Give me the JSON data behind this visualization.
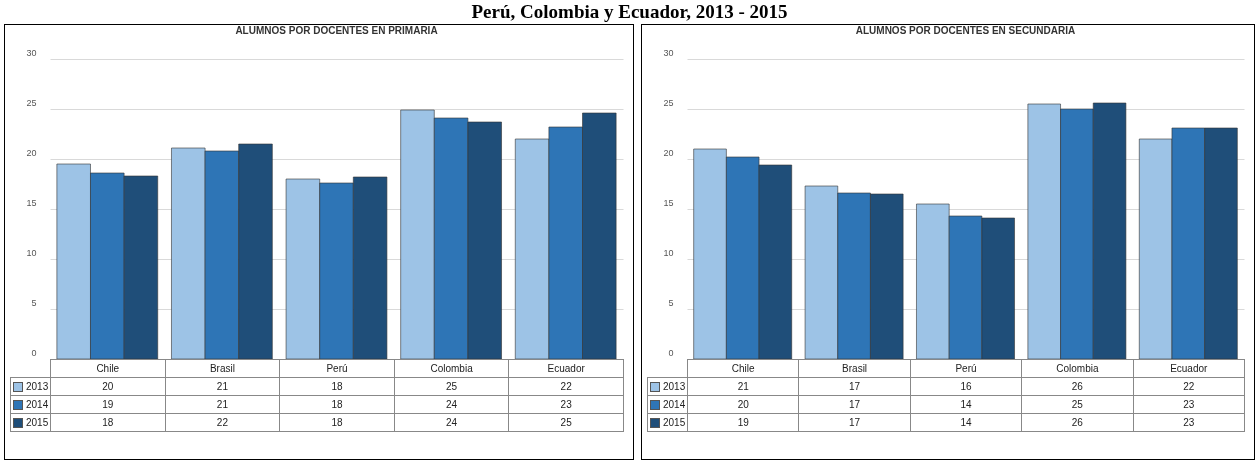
{
  "chart_data": [
    {
      "type": "bar",
      "title": "ALUMNOS POR DOCENTES EN PRIMARIA",
      "annotations": [
        "Perú, Colombia y Ecuador, 2013 - 2015"
      ],
      "categories": [
        "Chile",
        "Brasil",
        "Perú",
        "Colombia",
        "Ecuador"
      ],
      "ylim": [
        0,
        30
      ],
      "yticks": [
        0,
        5,
        10,
        15,
        20,
        25,
        30
      ],
      "grid": "y",
      "legend": "bottom",
      "series": [
        {
          "name": "2013",
          "color": "#9dc3e6",
          "values": [
            19.5,
            21.1,
            18.0,
            24.9,
            22.0
          ],
          "value_labels": [
            "20",
            "21",
            "18",
            "25",
            "22"
          ]
        },
        {
          "name": "2014",
          "color": "#2e75b6",
          "values": [
            18.6,
            20.8,
            17.6,
            24.1,
            23.2
          ],
          "value_labels": [
            "19",
            "21",
            "18",
            "24",
            "23"
          ]
        },
        {
          "name": "2015",
          "color": "#1f4e79",
          "values": [
            18.3,
            21.5,
            18.2,
            23.7,
            24.6
          ],
          "value_labels": [
            "18",
            "22",
            "18",
            "24",
            "25"
          ]
        }
      ]
    },
    {
      "type": "bar",
      "title": "ALUMNOS POR DOCENTES EN SECUNDARIA",
      "categories": [
        "Chile",
        "Brasil",
        "Perú",
        "Colombia",
        "Ecuador"
      ],
      "ylim": [
        0,
        30
      ],
      "yticks": [
        0,
        5,
        10,
        15,
        20,
        25,
        30
      ],
      "grid": "y",
      "legend": "bottom",
      "series": [
        {
          "name": "2013",
          "color": "#9dc3e6",
          "values": [
            21.0,
            17.3,
            15.5,
            25.5,
            22.0
          ],
          "value_labels": [
            "21",
            "17",
            "16",
            "26",
            "22"
          ]
        },
        {
          "name": "2014",
          "color": "#2e75b6",
          "values": [
            20.2,
            16.6,
            14.3,
            25.0,
            23.1
          ],
          "value_labels": [
            "20",
            "17",
            "14",
            "25",
            "23"
          ]
        },
        {
          "name": "2015",
          "color": "#1f4e79",
          "values": [
            19.4,
            16.5,
            14.1,
            25.6,
            23.1
          ],
          "value_labels": [
            "19",
            "17",
            "14",
            "26",
            "23"
          ]
        }
      ]
    }
  ]
}
